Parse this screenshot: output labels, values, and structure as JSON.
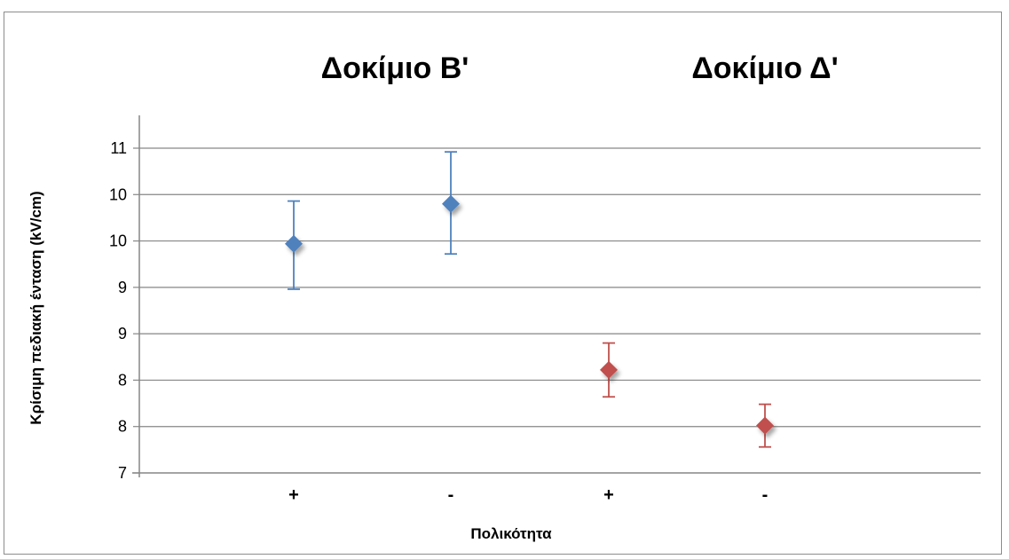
{
  "chart_data": {
    "type": "scatter",
    "titles": [
      "Δοκίμιο Β'",
      "Δοκίμιο Δ'"
    ],
    "xlabel": "Πολικότητα",
    "ylabel": "Κρίσιμη πεδιακή ένταση (kV/cm)",
    "categories": [
      "+",
      "-",
      "+",
      "-"
    ],
    "yticks": [
      "7",
      "8",
      "8",
      "9",
      "9",
      "10",
      "10",
      "11"
    ],
    "ytick_values": [
      7.0,
      7.5,
      8.0,
      8.5,
      9.0,
      9.5,
      10.0,
      10.5
    ],
    "ylim": [
      7.0,
      10.5
    ],
    "grid": true,
    "series": [
      {
        "color": "#4f81bd",
        "points": [
          {
            "category_index": 0,
            "y": 9.47,
            "err_low": 8.98,
            "err_high": 9.93
          },
          {
            "category_index": 1,
            "y": 9.9,
            "err_low": 9.36,
            "err_high": 10.46
          }
        ]
      },
      {
        "color": "#c0504d",
        "points": [
          {
            "category_index": 2,
            "y": 8.11,
            "err_low": 7.82,
            "err_high": 8.4
          },
          {
            "category_index": 3,
            "y": 7.51,
            "err_low": 7.28,
            "err_high": 7.74
          }
        ]
      }
    ]
  }
}
